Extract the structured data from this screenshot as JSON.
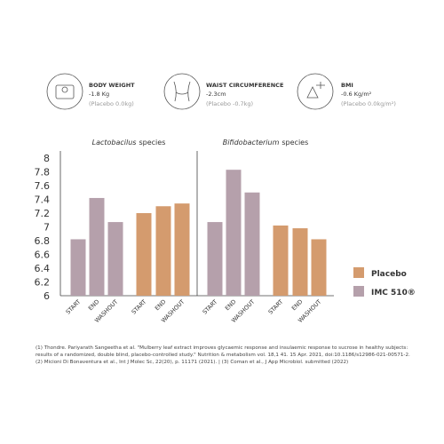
{
  "stats": [
    {
      "label": "BODY WEIGHT",
      "value": "-1.8 Kg",
      "note": "(Placebo 0.0kg)"
    },
    {
      "label": "WAIST CIRCUMFERENCE",
      "value": "-2.3cm",
      "note": "(Placebo -0.7kg)"
    },
    {
      "label": "BMI",
      "value": "-0.6 Kg/m²",
      "note": "(Placebo 0.0kg/m²)"
    }
  ],
  "chart_data": [
    {
      "type": "bar",
      "title": [
        "Lactobacilus",
        "species"
      ],
      "categories": [
        "START",
        "END",
        "WASHOUT",
        "START",
        "END",
        "WASHOUT"
      ],
      "ylim": [
        6,
        8
      ],
      "yticks": [
        8,
        7.8,
        7.6,
        7.4,
        7.2,
        7,
        6.8,
        6.6,
        6.4,
        6.2,
        6
      ],
      "series": [
        {
          "color": "#b5a0ab",
          "values": [
            6.82,
            7.42,
            7.07,
            null,
            null,
            null
          ]
        },
        {
          "color": "#d49b6e",
          "values": [
            null,
            null,
            null,
            7.2,
            7.3,
            7.34
          ]
        }
      ]
    },
    {
      "type": "bar",
      "title": [
        "Bifidobacterium",
        "species"
      ],
      "categories": [
        "START",
        "END",
        "WASHOUT",
        "START",
        "END",
        "WASHOUT"
      ],
      "series": [
        {
          "name": "IMC 510®",
          "color": "#b5a0ab",
          "values": [
            7.07,
            7.83,
            7.5,
            null,
            null,
            null
          ]
        },
        {
          "name": "Placebo",
          "color": "#d49b6e",
          "values": [
            null,
            null,
            null,
            7.02,
            6.98,
            6.82
          ]
        }
      ]
    }
  ],
  "footnotes": [
    "(1) Thondre. Pariyarath Sangeetha et al. \"Mulberry leaf extract improves glycaemic response and insulaemic response to sucrose in healthy subjects: results of a randomized, double blind, placebo-controlled study.\" Nutrition & metabolism vol. 18,1 41. 15 Apr. 2021, doi:10.1186/s12986-021-00571-2.",
    "(2) Micioni Di Bonaventura et al., Int J Molec Sc, 22(20), p. 11171 (2021). | (3) Coman et al., J App Microbiol. submitted (2022)"
  ]
}
